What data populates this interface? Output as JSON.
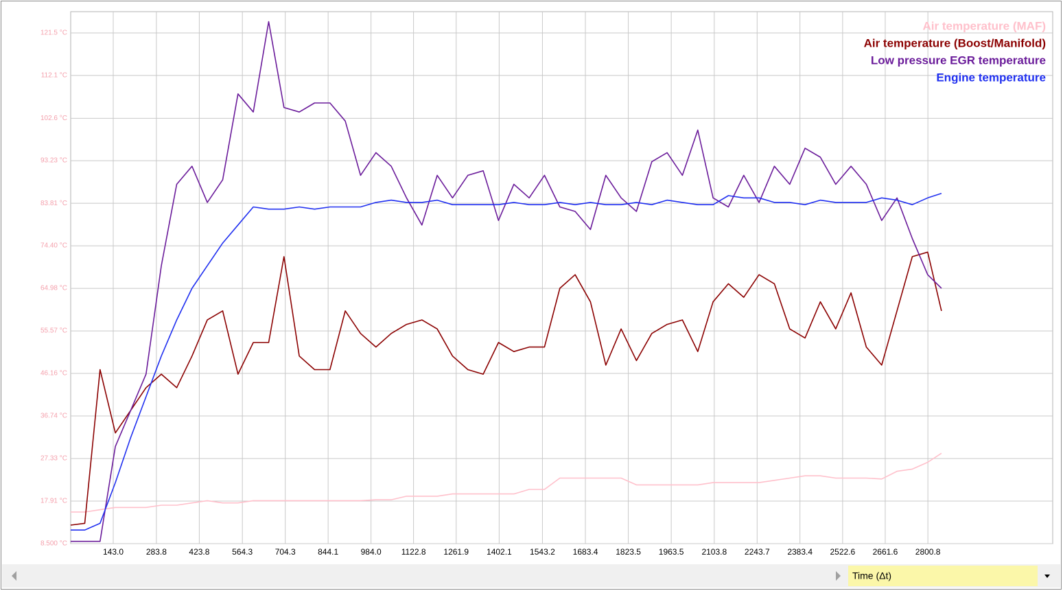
{
  "chart_data": {
    "type": "line",
    "x_label": "Time (Δt)",
    "legend": "top-right",
    "grid": true,
    "xlim": [
      4.2,
      3208
    ],
    "ylim": [
      8.5,
      126.2
    ],
    "xticks": [
      {
        "value": 143.0,
        "label": "143.0"
      },
      283.8,
      423.8,
      564.3,
      704.3,
      844.1,
      {
        "value": 984.0,
        "label": "984.0"
      },
      1122.8,
      1261.9,
      1402.1,
      1543.2,
      1683.4,
      1823.5,
      1963.5,
      2103.8,
      2243.7,
      2383.4,
      2522.6,
      2661.6,
      2800.8
    ],
    "yticks": [
      {
        "value": 8.5,
        "label": "8.500 °C"
      },
      {
        "value": 17.91,
        "label": "17.91 °C"
      },
      {
        "value": 27.33,
        "label": "27.33 °C"
      },
      {
        "value": 36.74,
        "label": "36.74 °C"
      },
      {
        "value": 46.16,
        "label": "46.16 °C"
      },
      {
        "value": 55.57,
        "label": "55.57 °C"
      },
      {
        "value": 64.98,
        "label": "64.98 °C"
      },
      {
        "value": 74.4,
        "label": "74.40 °C"
      },
      {
        "value": 83.81,
        "label": "83.81 °C"
      },
      {
        "value": 93.23,
        "label": "93.23 °C"
      },
      {
        "value": 102.6,
        "label": "102.6 °C"
      },
      {
        "value": 112.1,
        "label": "112.1 °C"
      },
      {
        "value": 121.5,
        "label": "121.5 °C"
      }
    ],
    "x": [
      4,
      50,
      100,
      150,
      200,
      250,
      300,
      350,
      400,
      450,
      500,
      550,
      600,
      650,
      700,
      750,
      800,
      850,
      900,
      950,
      1000,
      1050,
      1100,
      1150,
      1200,
      1250,
      1300,
      1350,
      1400,
      1450,
      1500,
      1550,
      1600,
      1650,
      1700,
      1750,
      1800,
      1850,
      1900,
      1950,
      2000,
      2050,
      2100,
      2150,
      2200,
      2250,
      2300,
      2350,
      2400,
      2450,
      2500,
      2550,
      2600,
      2650,
      2700,
      2750,
      2800,
      2845
    ],
    "series": [
      {
        "name": "Air temperature (MAF)",
        "color": "#ffc0cb",
        "values": [
          15.5,
          15.5,
          16,
          16.5,
          16.5,
          16.5,
          17,
          17,
          17.5,
          18,
          17.5,
          17.5,
          18,
          18,
          18,
          18,
          18,
          18,
          18,
          18,
          18.2,
          18.2,
          19,
          19,
          19,
          19.5,
          19.5,
          19.5,
          19.5,
          19.5,
          20.5,
          20.5,
          23,
          23,
          23,
          23,
          23,
          21.5,
          21.5,
          21.5,
          21.5,
          21.5,
          22,
          22,
          22,
          22,
          22.5,
          23,
          23.5,
          23.5,
          23,
          23,
          23,
          22.8,
          24.5,
          25,
          26.5,
          28.5
        ]
      },
      {
        "name": "Air temperature (Boost/Manifold)",
        "color": "#8b0000",
        "values": [
          12.6,
          13,
          47,
          33,
          38,
          43,
          46,
          43,
          50,
          58,
          60,
          46,
          53,
          53,
          72,
          50,
          47,
          47,
          60,
          55,
          52,
          55,
          57,
          58,
          56,
          50,
          47,
          46,
          53,
          51,
          52,
          52,
          65,
          68,
          62,
          48,
          56,
          49,
          55,
          57,
          58,
          51,
          62,
          66,
          63,
          68,
          66,
          56,
          54,
          62,
          56,
          64,
          52,
          48,
          60,
          72,
          73,
          60
        ]
      },
      {
        "name": "Low pressure EGR temperature",
        "color": "#6a1b9a",
        "values": [
          9,
          9,
          9,
          30,
          38,
          46,
          70,
          88,
          92,
          84,
          89,
          108,
          104,
          124,
          105,
          104,
          106,
          106,
          102,
          90,
          95,
          92,
          85,
          79,
          90,
          85,
          90,
          91,
          80,
          88,
          85,
          90,
          83,
          82,
          78,
          90,
          85,
          82,
          93,
          95,
          90,
          100,
          85,
          83,
          90,
          84,
          92,
          88,
          96,
          94,
          88,
          92,
          88,
          80,
          85,
          76,
          68,
          65
        ]
      },
      {
        "name": "Engine temperature",
        "color": "#1f2ff0",
        "values": [
          11.5,
          11.5,
          13,
          22,
          32,
          41,
          50,
          58,
          65,
          70,
          75,
          79,
          83,
          82.5,
          82.5,
          83,
          82.5,
          83,
          83,
          83,
          84,
          84.5,
          84,
          84,
          84.5,
          83.5,
          83.5,
          83.5,
          83.5,
          84,
          83.5,
          83.5,
          84,
          83.5,
          84,
          83.5,
          83.5,
          84,
          83.5,
          84.5,
          84,
          83.5,
          83.5,
          85.5,
          85,
          85,
          84,
          84,
          83.5,
          84.5,
          84,
          84,
          84,
          85,
          84.5,
          83.5,
          85,
          86
        ]
      }
    ]
  }
}
